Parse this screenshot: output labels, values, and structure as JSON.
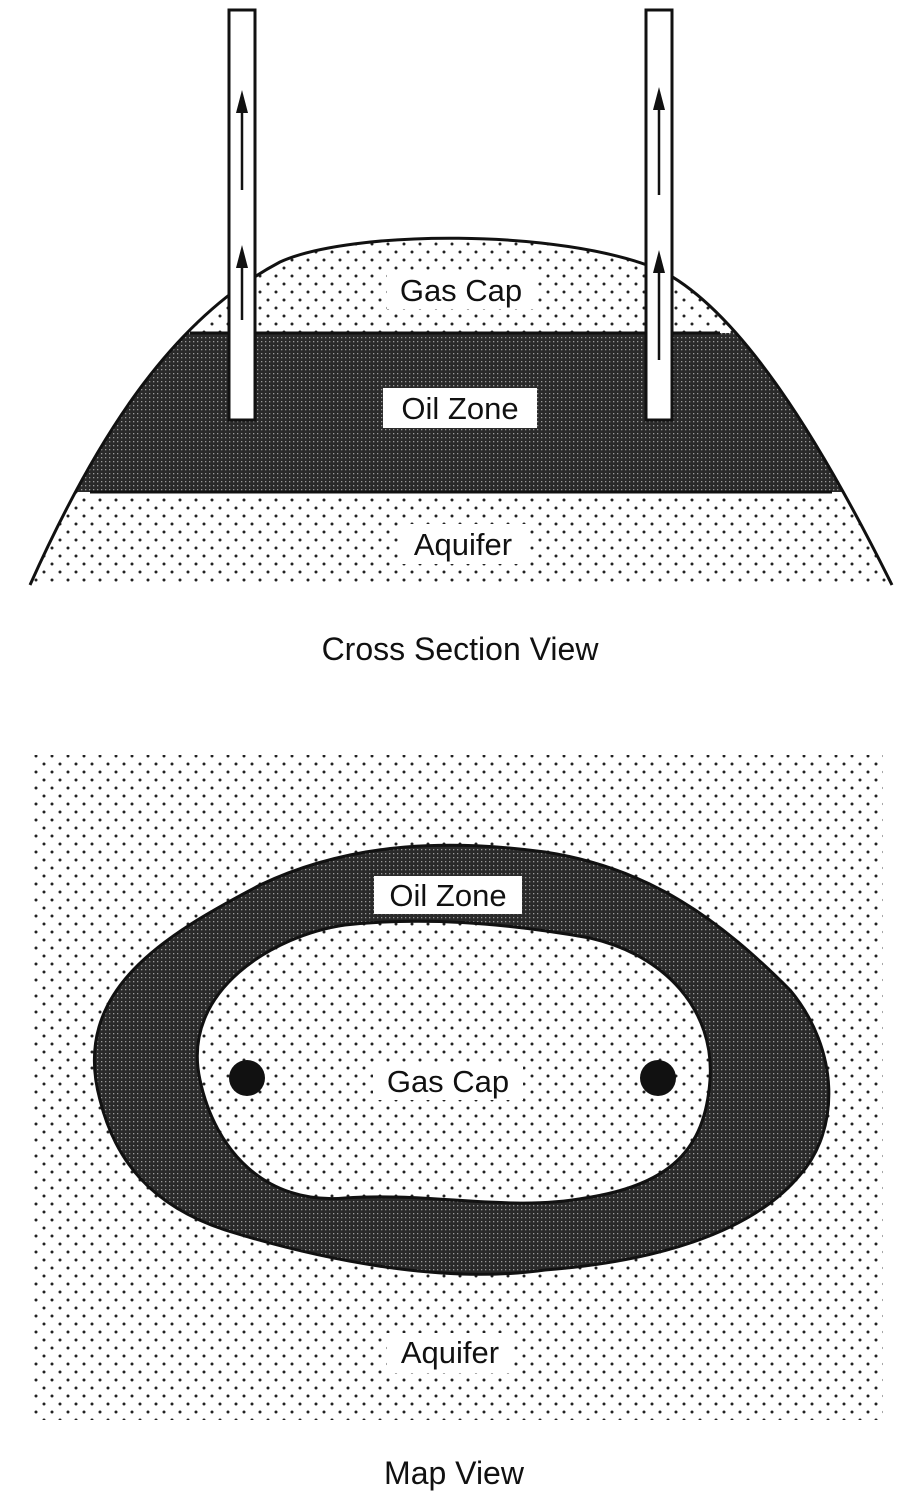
{
  "cross_section": {
    "gas_cap_label": "Gas Cap",
    "oil_zone_label": "Oil Zone",
    "aquifer_label": "Aquifer",
    "caption": "Cross Section View"
  },
  "map_view": {
    "oil_zone_label": "Oil Zone",
    "gas_cap_label": "Gas Cap",
    "aquifer_label": "Aquifer",
    "caption": "Map View"
  },
  "colors": {
    "line": "#111111",
    "dot": "#222222",
    "oil_dark": "#2a2a2a",
    "background": "#ffffff"
  }
}
